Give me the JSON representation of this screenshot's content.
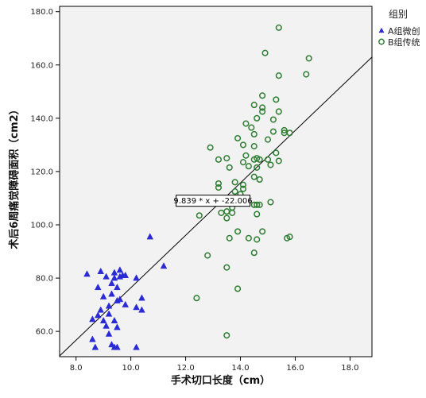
{
  "chart_data": {
    "type": "scatter",
    "xlabel": "手术切口长度（cm）",
    "ylabel": "术后6周痛觉障碍面积（cm2）",
    "xlim": [
      7.4,
      18.8
    ],
    "ylim": [
      50.5,
      182
    ],
    "x_ticks": [
      "8.0",
      "10.0",
      "12.0",
      "14.0",
      "16.0",
      "18.0"
    ],
    "y_ticks": [
      "60.0",
      "80.0",
      "100.0",
      "120.0",
      "140.0",
      "160.0",
      "180.0"
    ],
    "x_tick_values": [
      8,
      10,
      12,
      14,
      16,
      18
    ],
    "y_tick_values": [
      60,
      80,
      100,
      120,
      140,
      160,
      180
    ],
    "grid": false,
    "legend": {
      "title": "组别",
      "placement": "top-right",
      "entries": [
        "A组微创",
        "B组传统"
      ]
    },
    "fit_line": {
      "label": "9.839 * x + -22.006",
      "slope": 9.839,
      "intercept": -22.006,
      "label_x": 13.0,
      "label_y": 108.0
    },
    "colors": {
      "A": "#2b2bd6",
      "B": "#2e7d32"
    },
    "series": [
      {
        "name": "A组微创",
        "marker": "triangle",
        "points": [
          [
            8.4,
            81.5
          ],
          [
            8.6,
            64.5
          ],
          [
            8.6,
            57
          ],
          [
            8.7,
            54
          ],
          [
            8.8,
            66
          ],
          [
            8.8,
            76.5
          ],
          [
            8.9,
            82.5
          ],
          [
            8.9,
            68
          ],
          [
            9.0,
            64
          ],
          [
            9.0,
            73
          ],
          [
            9.1,
            80.5
          ],
          [
            9.2,
            59
          ],
          [
            9.2,
            66.5
          ],
          [
            9.2,
            69.5
          ],
          [
            9.3,
            78
          ],
          [
            9.3,
            74
          ],
          [
            9.3,
            55
          ],
          [
            9.4,
            82
          ],
          [
            9.4,
            80
          ],
          [
            9.4,
            64
          ],
          [
            9.4,
            54
          ],
          [
            9.5,
            61.5
          ],
          [
            9.5,
            71.5
          ],
          [
            9.5,
            76.5
          ],
          [
            9.5,
            54
          ],
          [
            9.6,
            83
          ],
          [
            9.6,
            80.5
          ],
          [
            9.7,
            81
          ],
          [
            9.8,
            70
          ],
          [
            9.8,
            81
          ],
          [
            10.2,
            80
          ],
          [
            10.2,
            54
          ],
          [
            10.2,
            69
          ],
          [
            10.4,
            72.5
          ],
          [
            10.4,
            68
          ],
          [
            10.7,
            95.5
          ],
          [
            11.2,
            84.5
          ],
          [
            9.1,
            62
          ],
          [
            9.6,
            72
          ]
        ]
      },
      {
        "name": "B组传统",
        "marker": "circle",
        "points": [
          [
            12.4,
            72.5
          ],
          [
            12.5,
            103.5
          ],
          [
            12.8,
            88.5
          ],
          [
            12.9,
            129
          ],
          [
            13.2,
            124.5
          ],
          [
            13.2,
            115.5
          ],
          [
            13.2,
            114
          ],
          [
            13.3,
            108
          ],
          [
            13.3,
            104.5
          ],
          [
            13.5,
            125
          ],
          [
            13.5,
            105
          ],
          [
            13.5,
            102.5
          ],
          [
            13.5,
            84
          ],
          [
            13.5,
            58.5
          ],
          [
            13.6,
            121.5
          ],
          [
            13.6,
            95
          ],
          [
            13.7,
            106.5
          ],
          [
            13.7,
            104.5
          ],
          [
            13.8,
            116
          ],
          [
            13.8,
            112.5
          ],
          [
            13.9,
            132.5
          ],
          [
            13.9,
            97.5
          ],
          [
            13.9,
            76
          ],
          [
            14.0,
            111.5
          ],
          [
            14.1,
            130
          ],
          [
            14.1,
            123.5
          ],
          [
            14.1,
            115
          ],
          [
            14.1,
            113.5
          ],
          [
            14.2,
            138
          ],
          [
            14.2,
            126
          ],
          [
            14.2,
            110
          ],
          [
            14.3,
            95
          ],
          [
            14.4,
            136.5
          ],
          [
            14.5,
            145
          ],
          [
            14.5,
            134
          ],
          [
            14.5,
            129.5
          ],
          [
            14.5,
            124.5
          ],
          [
            14.5,
            118
          ],
          [
            14.5,
            107.5
          ],
          [
            14.5,
            89.5
          ],
          [
            14.6,
            140
          ],
          [
            14.6,
            125
          ],
          [
            14.6,
            121.5
          ],
          [
            14.6,
            107.5
          ],
          [
            14.6,
            104
          ],
          [
            14.6,
            94.5
          ],
          [
            14.7,
            117
          ],
          [
            14.7,
            107.5
          ],
          [
            14.8,
            148.5
          ],
          [
            14.8,
            144
          ],
          [
            14.8,
            142.5
          ],
          [
            14.8,
            97.5
          ],
          [
            14.9,
            164.5
          ],
          [
            15.0,
            132
          ],
          [
            15.0,
            124.5
          ],
          [
            15.1,
            122.5
          ],
          [
            15.1,
            108.5
          ],
          [
            15.2,
            139.5
          ],
          [
            15.2,
            135
          ],
          [
            15.3,
            147
          ],
          [
            15.3,
            127
          ],
          [
            15.4,
            174
          ],
          [
            15.4,
            156
          ],
          [
            15.4,
            142.5
          ],
          [
            15.4,
            124
          ],
          [
            15.6,
            135.5
          ],
          [
            15.6,
            134.5
          ],
          [
            15.7,
            95
          ],
          [
            15.8,
            134.5
          ],
          [
            15.8,
            95.5
          ],
          [
            16.4,
            156.5
          ],
          [
            16.5,
            162.5
          ],
          [
            14.3,
            122
          ],
          [
            14.0,
            108
          ],
          [
            14.7,
            124.5
          ]
        ]
      }
    ]
  }
}
